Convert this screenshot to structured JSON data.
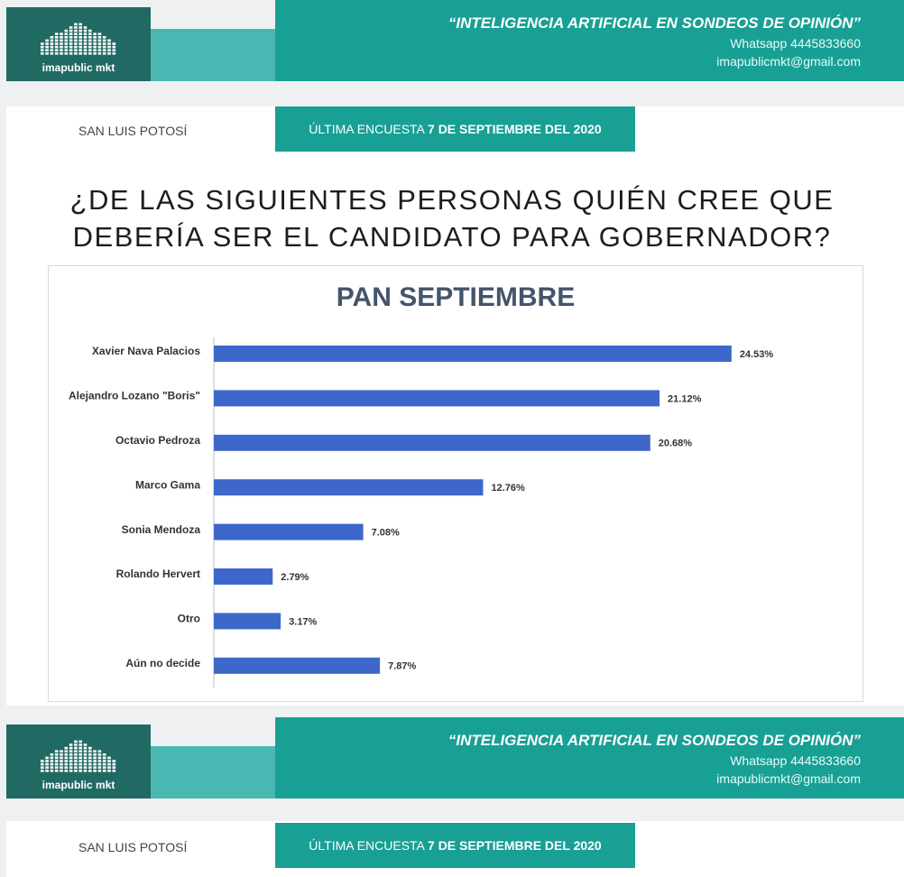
{
  "banner": {
    "logo": "imapublic mkt",
    "slogan": "“INTELIGENCIA ARTIFICIAL EN SONDEOS DE OPINIÓN”",
    "whatsapp": "Whatsapp 4445833660",
    "email": "imapublicmkt@gmail.com"
  },
  "location": "SAN LUIS POTOSÍ",
  "survey_label": "ÚLTIMA ENCUESTA",
  "survey_date": "7 DE SEPTIEMBRE DEL 2020",
  "question_lines": [
    "¿DE LAS SIGUIENTES PERSONAS QUIÉN CREE QUE",
    "DEBERÍA SER EL CANDIDATO PARA GOBERNADOR?"
  ],
  "chart_data": {
    "type": "bar",
    "orientation": "horizontal",
    "title": "PAN SEPTIEMBRE",
    "categories": [
      "Xavier Nava Palacios",
      "Alejandro Lozano \"Boris\"",
      "Octavio Pedroza",
      "Marco Gama",
      "Sonia Mendoza",
      "Rolando Hervert",
      "Otro",
      "Aún no decide"
    ],
    "values": [
      24.53,
      21.12,
      20.68,
      12.76,
      7.08,
      2.79,
      3.17,
      7.87
    ],
    "value_labels": [
      "24.53%",
      "21.12%",
      "20.68%",
      "12.76%",
      "7.08%",
      "2.79%",
      "3.17%",
      "7.87%"
    ],
    "color": "#3d68c9",
    "xlim": [
      0,
      28
    ]
  }
}
